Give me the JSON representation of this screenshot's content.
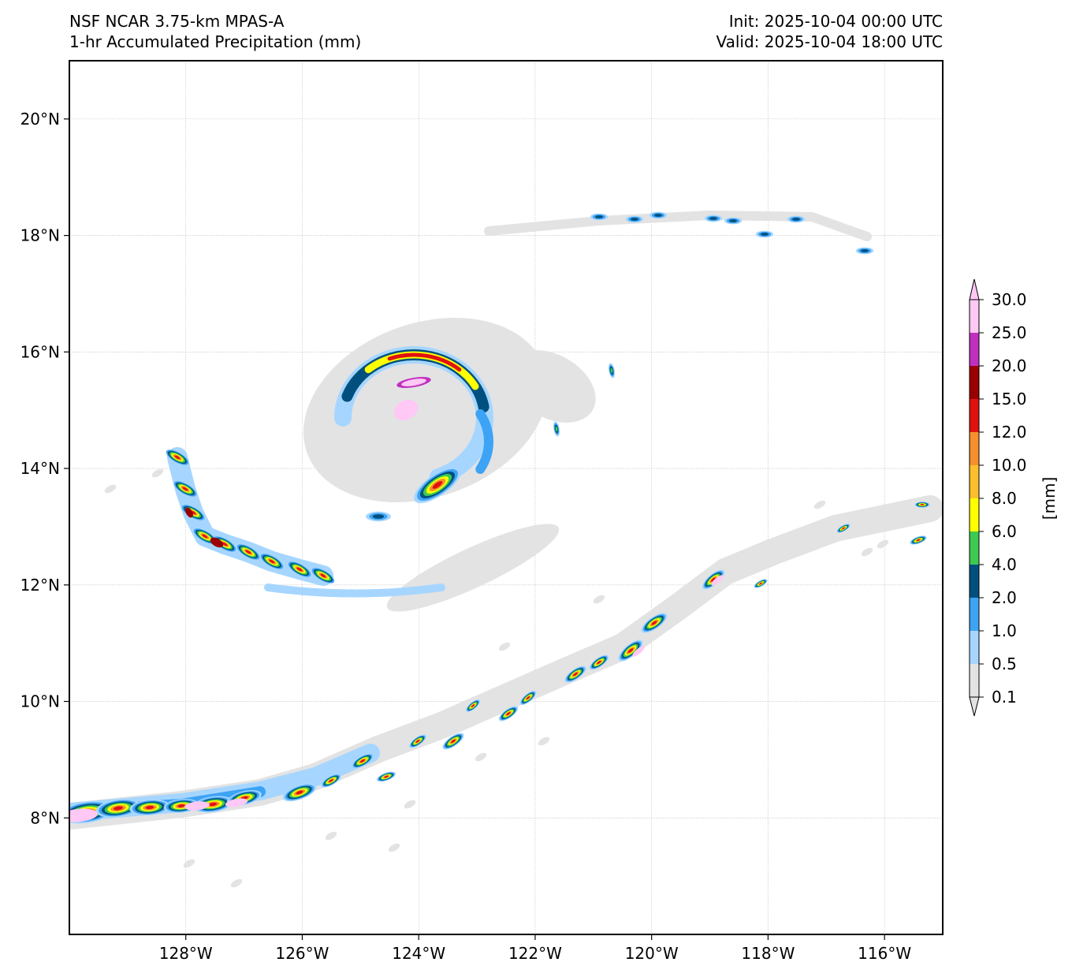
{
  "header": {
    "model": "NSF NCAR 3.75-km MPAS-A",
    "field": "1-hr Accumulated Precipitation (mm)",
    "init": "Init: 2025-10-04 00:00 UTC",
    "valid": "Valid: 2025-10-04 18:00 UTC"
  },
  "map": {
    "lon_range": [
      -130,
      -115
    ],
    "lat_range": [
      6,
      21
    ],
    "lat_ticks": [
      {
        "value": 8,
        "label": "8°N"
      },
      {
        "value": 10,
        "label": "10°N"
      },
      {
        "value": 12,
        "label": "12°N"
      },
      {
        "value": 14,
        "label": "14°N"
      },
      {
        "value": 16,
        "label": "16°N"
      },
      {
        "value": 18,
        "label": "18°N"
      },
      {
        "value": 20,
        "label": "20°N"
      }
    ],
    "lon_ticks": [
      {
        "value": -128,
        "label": "128°W"
      },
      {
        "value": -126,
        "label": "126°W"
      },
      {
        "value": -124,
        "label": "124°W"
      },
      {
        "value": -122,
        "label": "122°W"
      },
      {
        "value": -120,
        "label": "120°W"
      },
      {
        "value": -118,
        "label": "118°W"
      },
      {
        "value": -116,
        "label": "116°W"
      }
    ]
  },
  "colorbar": {
    "unit_label": "[mm]",
    "levels": [
      "0.1",
      "0.5",
      "1.0",
      "2.0",
      "4.0",
      "6.0",
      "8.0",
      "10.0",
      "12.0",
      "15.0",
      "20.0",
      "25.0",
      "30.0"
    ],
    "colors": [
      "#e3e3e3",
      "#a6d6ff",
      "#3da3f5",
      "#00507f",
      "#3ccb50",
      "#ffff00",
      "#fdbf2d",
      "#f5902d",
      "#e0120f",
      "#9b0000",
      "#c030c0",
      "#ffc8f5"
    ]
  }
}
